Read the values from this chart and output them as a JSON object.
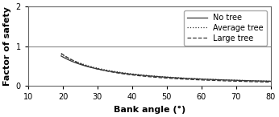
{
  "title": "",
  "xlabel": "Bank angle (°)",
  "ylabel": "Factor of safety",
  "xlim": [
    10,
    80
  ],
  "ylim": [
    0,
    2
  ],
  "xticks": [
    10,
    20,
    30,
    40,
    50,
    60,
    70,
    80
  ],
  "yticks": [
    0,
    1,
    2
  ],
  "hline_y": 1.0,
  "hline_color": "#888888",
  "curve_color": "#333333",
  "legend_entries": [
    "No tree",
    "Average tree",
    "Large tree"
  ],
  "no_tree": {
    "c": 38.0,
    "n": 1.32
  },
  "avg_tree": {
    "c": 44.0,
    "n": 1.35
  },
  "large_tree": {
    "c": 75.0,
    "n": 1.52
  },
  "x_start": 19.5,
  "xlabel_fontsize": 8,
  "ylabel_fontsize": 8,
  "tick_fontsize": 7,
  "legend_fontsize": 7,
  "figsize": [
    3.46,
    1.46
  ],
  "dpi": 100
}
